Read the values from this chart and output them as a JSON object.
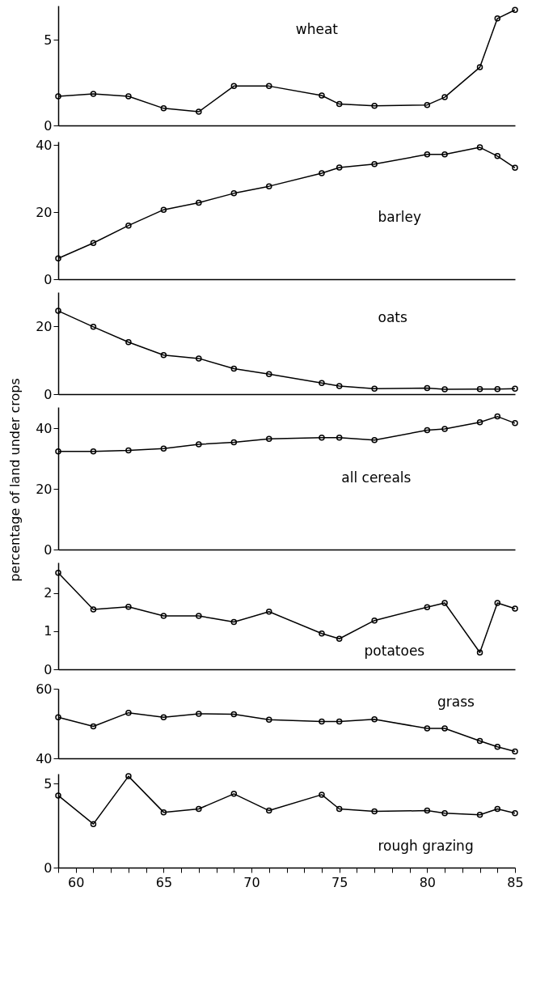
{
  "chart_data": [
    {
      "type": "line",
      "x": [
        59,
        61,
        63,
        65,
        67,
        69,
        71,
        74,
        75,
        77,
        80,
        81,
        83,
        84,
        85
      ],
      "series": [
        {
          "name": "wheat",
          "color": "#000000",
          "values": [
            1.7,
            1.85,
            1.7,
            1.0,
            0.8,
            2.3,
            2.3,
            1.75,
            1.25,
            1.15,
            1.2,
            1.65,
            3.4,
            6.25,
            6.75
          ]
        }
      ],
      "xlim": [
        59,
        85
      ],
      "ylim": [
        0,
        7
      ],
      "yticks": [
        0,
        5
      ],
      "tick_labels": "y",
      "marker": "circle"
    },
    {
      "type": "line",
      "x": [
        59,
        61,
        63,
        65,
        67,
        69,
        71,
        74,
        75,
        77,
        80,
        81,
        83,
        84,
        85
      ],
      "series": [
        {
          "name": "barley",
          "color": "#000000",
          "values": [
            6.2,
            10.8,
            16.0,
            20.7,
            22.8,
            25.6,
            27.7,
            31.6,
            33.3,
            34.3,
            37.2,
            37.2,
            39.3,
            36.7,
            33.2
          ]
        }
      ],
      "xlim": [
        59,
        85
      ],
      "ylim": [
        0,
        41
      ],
      "yticks": [
        0,
        20,
        40
      ],
      "tick_labels": "y",
      "marker": "circle"
    },
    {
      "type": "line",
      "x": [
        59,
        61,
        63,
        65,
        67,
        69,
        71,
        74,
        75,
        77,
        80,
        81,
        83,
        84,
        85
      ],
      "series": [
        {
          "name": "oats",
          "color": "#000000",
          "values": [
            24.5,
            19.8,
            15.3,
            11.5,
            10.5,
            7.5,
            5.9,
            3.3,
            2.4,
            1.6,
            1.8,
            1.4,
            1.5,
            1.5,
            1.6
          ]
        }
      ],
      "xlim": [
        59,
        85
      ],
      "ylim": [
        0,
        30
      ],
      "yticks": [
        0,
        20
      ],
      "tick_labels": "y",
      "marker": "circle"
    },
    {
      "type": "line",
      "ylabel": "percentage of land under crops",
      "x": [
        59,
        61,
        63,
        65,
        67,
        69,
        71,
        74,
        75,
        77,
        80,
        81,
        83,
        84,
        85
      ],
      "series": [
        {
          "name": "all cereals",
          "color": "#000000",
          "values": [
            32.4,
            32.4,
            32.7,
            33.3,
            34.7,
            35.4,
            36.5,
            36.9,
            36.9,
            36.1,
            39.4,
            39.8,
            42.0,
            43.9,
            41.7
          ]
        }
      ],
      "xlim": [
        59,
        85
      ],
      "ylim": [
        0,
        47
      ],
      "yticks": [
        0,
        20,
        40
      ],
      "tick_labels": "y",
      "marker": "circle"
    },
    {
      "type": "line",
      "x": [
        59,
        61,
        63,
        65,
        67,
        69,
        71,
        74,
        75,
        77,
        80,
        81,
        83,
        84,
        85
      ],
      "series": [
        {
          "name": "potatoes",
          "color": "#000000",
          "values": [
            2.53,
            1.57,
            1.64,
            1.4,
            1.4,
            1.24,
            1.51,
            0.94,
            0.8,
            1.28,
            1.63,
            1.74,
            0.44,
            1.74,
            1.59
          ]
        }
      ],
      "xlim": [
        59,
        85
      ],
      "ylim": [
        0,
        2.8
      ],
      "yticks": [
        0,
        1,
        2
      ],
      "tick_labels": "y",
      "marker": "circle"
    },
    {
      "type": "line",
      "x": [
        59,
        61,
        63,
        65,
        67,
        69,
        71,
        74,
        75,
        77,
        80,
        81,
        83,
        84,
        85
      ],
      "series": [
        {
          "name": "grass",
          "color": "#000000",
          "values": [
            51.8,
            49.2,
            53.1,
            51.8,
            52.8,
            52.7,
            51.1,
            50.6,
            50.6,
            51.2,
            48.6,
            48.6,
            45.0,
            43.3,
            42.0
          ]
        }
      ],
      "xlim": [
        59,
        85
      ],
      "ylim": [
        40,
        60
      ],
      "yticks": [
        40,
        60
      ],
      "tick_labels": "y",
      "marker": "circle"
    },
    {
      "type": "line",
      "x": [
        59,
        61,
        63,
        65,
        67,
        69,
        71,
        74,
        75,
        77,
        80,
        81,
        83,
        84,
        85
      ],
      "series": [
        {
          "name": "rough grazing",
          "color": "#000000",
          "values": [
            4.3,
            2.6,
            5.45,
            3.3,
            3.5,
            4.4,
            3.4,
            4.35,
            3.5,
            3.35,
            3.4,
            3.25,
            3.15,
            3.5,
            3.25
          ]
        }
      ],
      "xlim": [
        59,
        85
      ],
      "ylim": [
        0,
        5.6
      ],
      "yticks": [
        0,
        5
      ],
      "marker": "circle",
      "xticks": [
        {
          "value": 59,
          "label": null
        },
        60,
        {
          "value": 61,
          "label": null
        },
        {
          "value": 62,
          "label": null
        },
        {
          "value": 63,
          "label": null
        },
        {
          "value": 64,
          "label": null
        },
        65,
        {
          "value": 66,
          "label": null
        },
        {
          "value": 67,
          "label": null
        },
        {
          "value": 68,
          "label": null
        },
        {
          "value": 69,
          "label": null
        },
        70,
        {
          "value": 71,
          "label": null
        },
        {
          "value": 72,
          "label": null
        },
        {
          "value": 73,
          "label": null
        },
        {
          "value": 74,
          "label": null
        },
        75,
        {
          "value": 76,
          "label": null
        },
        {
          "value": 77,
          "label": null
        },
        {
          "value": 78,
          "label": null
        },
        {
          "value": 79,
          "label": null
        },
        80,
        {
          "value": 81,
          "label": null
        },
        {
          "value": 82,
          "label": null
        },
        {
          "value": 83,
          "label": null
        },
        {
          "value": 84,
          "label": null
        },
        85
      ]
    }
  ]
}
